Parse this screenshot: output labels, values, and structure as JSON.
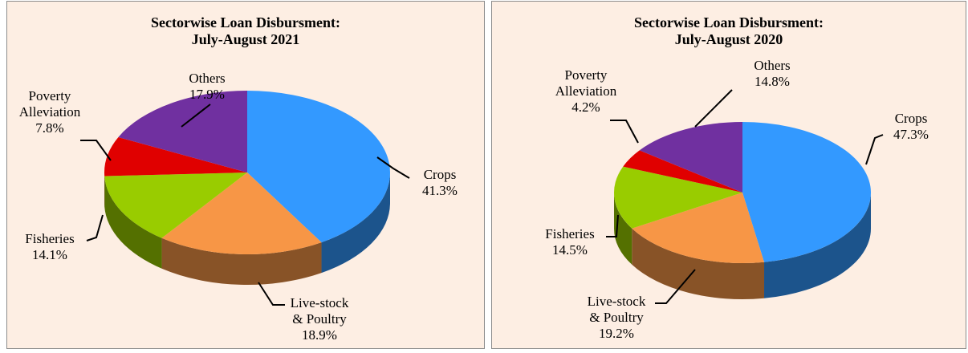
{
  "chart_data": [
    {
      "type": "pie",
      "title": "Sectorwise Loan Disbursment:",
      "subtitle": "July-August 2021",
      "categories": [
        "Crops",
        "Live-stock & Poultry",
        "Fisheries",
        "Poverty Alleviation",
        "Others"
      ],
      "values": [
        41.3,
        18.9,
        14.1,
        7.8,
        17.9
      ],
      "value_labels": [
        "41.3%",
        "18.9%",
        "14.1%",
        "7.8%",
        "17.9%"
      ],
      "colors": [
        "#3399ff",
        "#f79646",
        "#99cc00",
        "#e00000",
        "#7030a0"
      ]
    },
    {
      "type": "pie",
      "title": "Sectorwise Loan Disbursment:",
      "subtitle": "July-August 2020",
      "categories": [
        "Crops",
        "Live-stock & Poultry",
        "Fisheries",
        "Poverty Alleviation",
        "Others"
      ],
      "values": [
        47.3,
        19.2,
        14.5,
        4.2,
        14.8
      ],
      "value_labels": [
        "47.3%",
        "19.2%",
        "14.5%",
        "4.2%",
        "14.8%"
      ],
      "colors": [
        "#3399ff",
        "#f79646",
        "#99cc00",
        "#e00000",
        "#7030a0"
      ]
    }
  ]
}
